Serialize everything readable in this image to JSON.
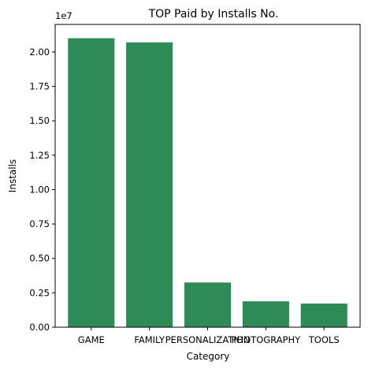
{
  "chart_data": {
    "type": "bar",
    "title": "TOP Paid by Installs No.",
    "xlabel": "Category",
    "ylabel": "Installs",
    "y_offset_label": "1e7",
    "categories": [
      "GAME",
      "FAMILY",
      "PERSONALIZATION",
      "PHOTOGRAPHY",
      "TOOLS"
    ],
    "values": [
      21000000,
      20700000,
      3250000,
      1880000,
      1720000
    ],
    "ylim": [
      0,
      22000000
    ],
    "yticks": [
      0,
      2500000,
      5000000,
      7500000,
      10000000,
      12500000,
      15000000,
      17500000,
      20000000
    ],
    "ytick_labels": [
      "0.00",
      "0.25",
      "0.50",
      "0.75",
      "1.00",
      "1.25",
      "1.50",
      "1.75",
      "2.00"
    ],
    "bar_color": "#2e8b57",
    "grid": false,
    "legend": "none"
  }
}
